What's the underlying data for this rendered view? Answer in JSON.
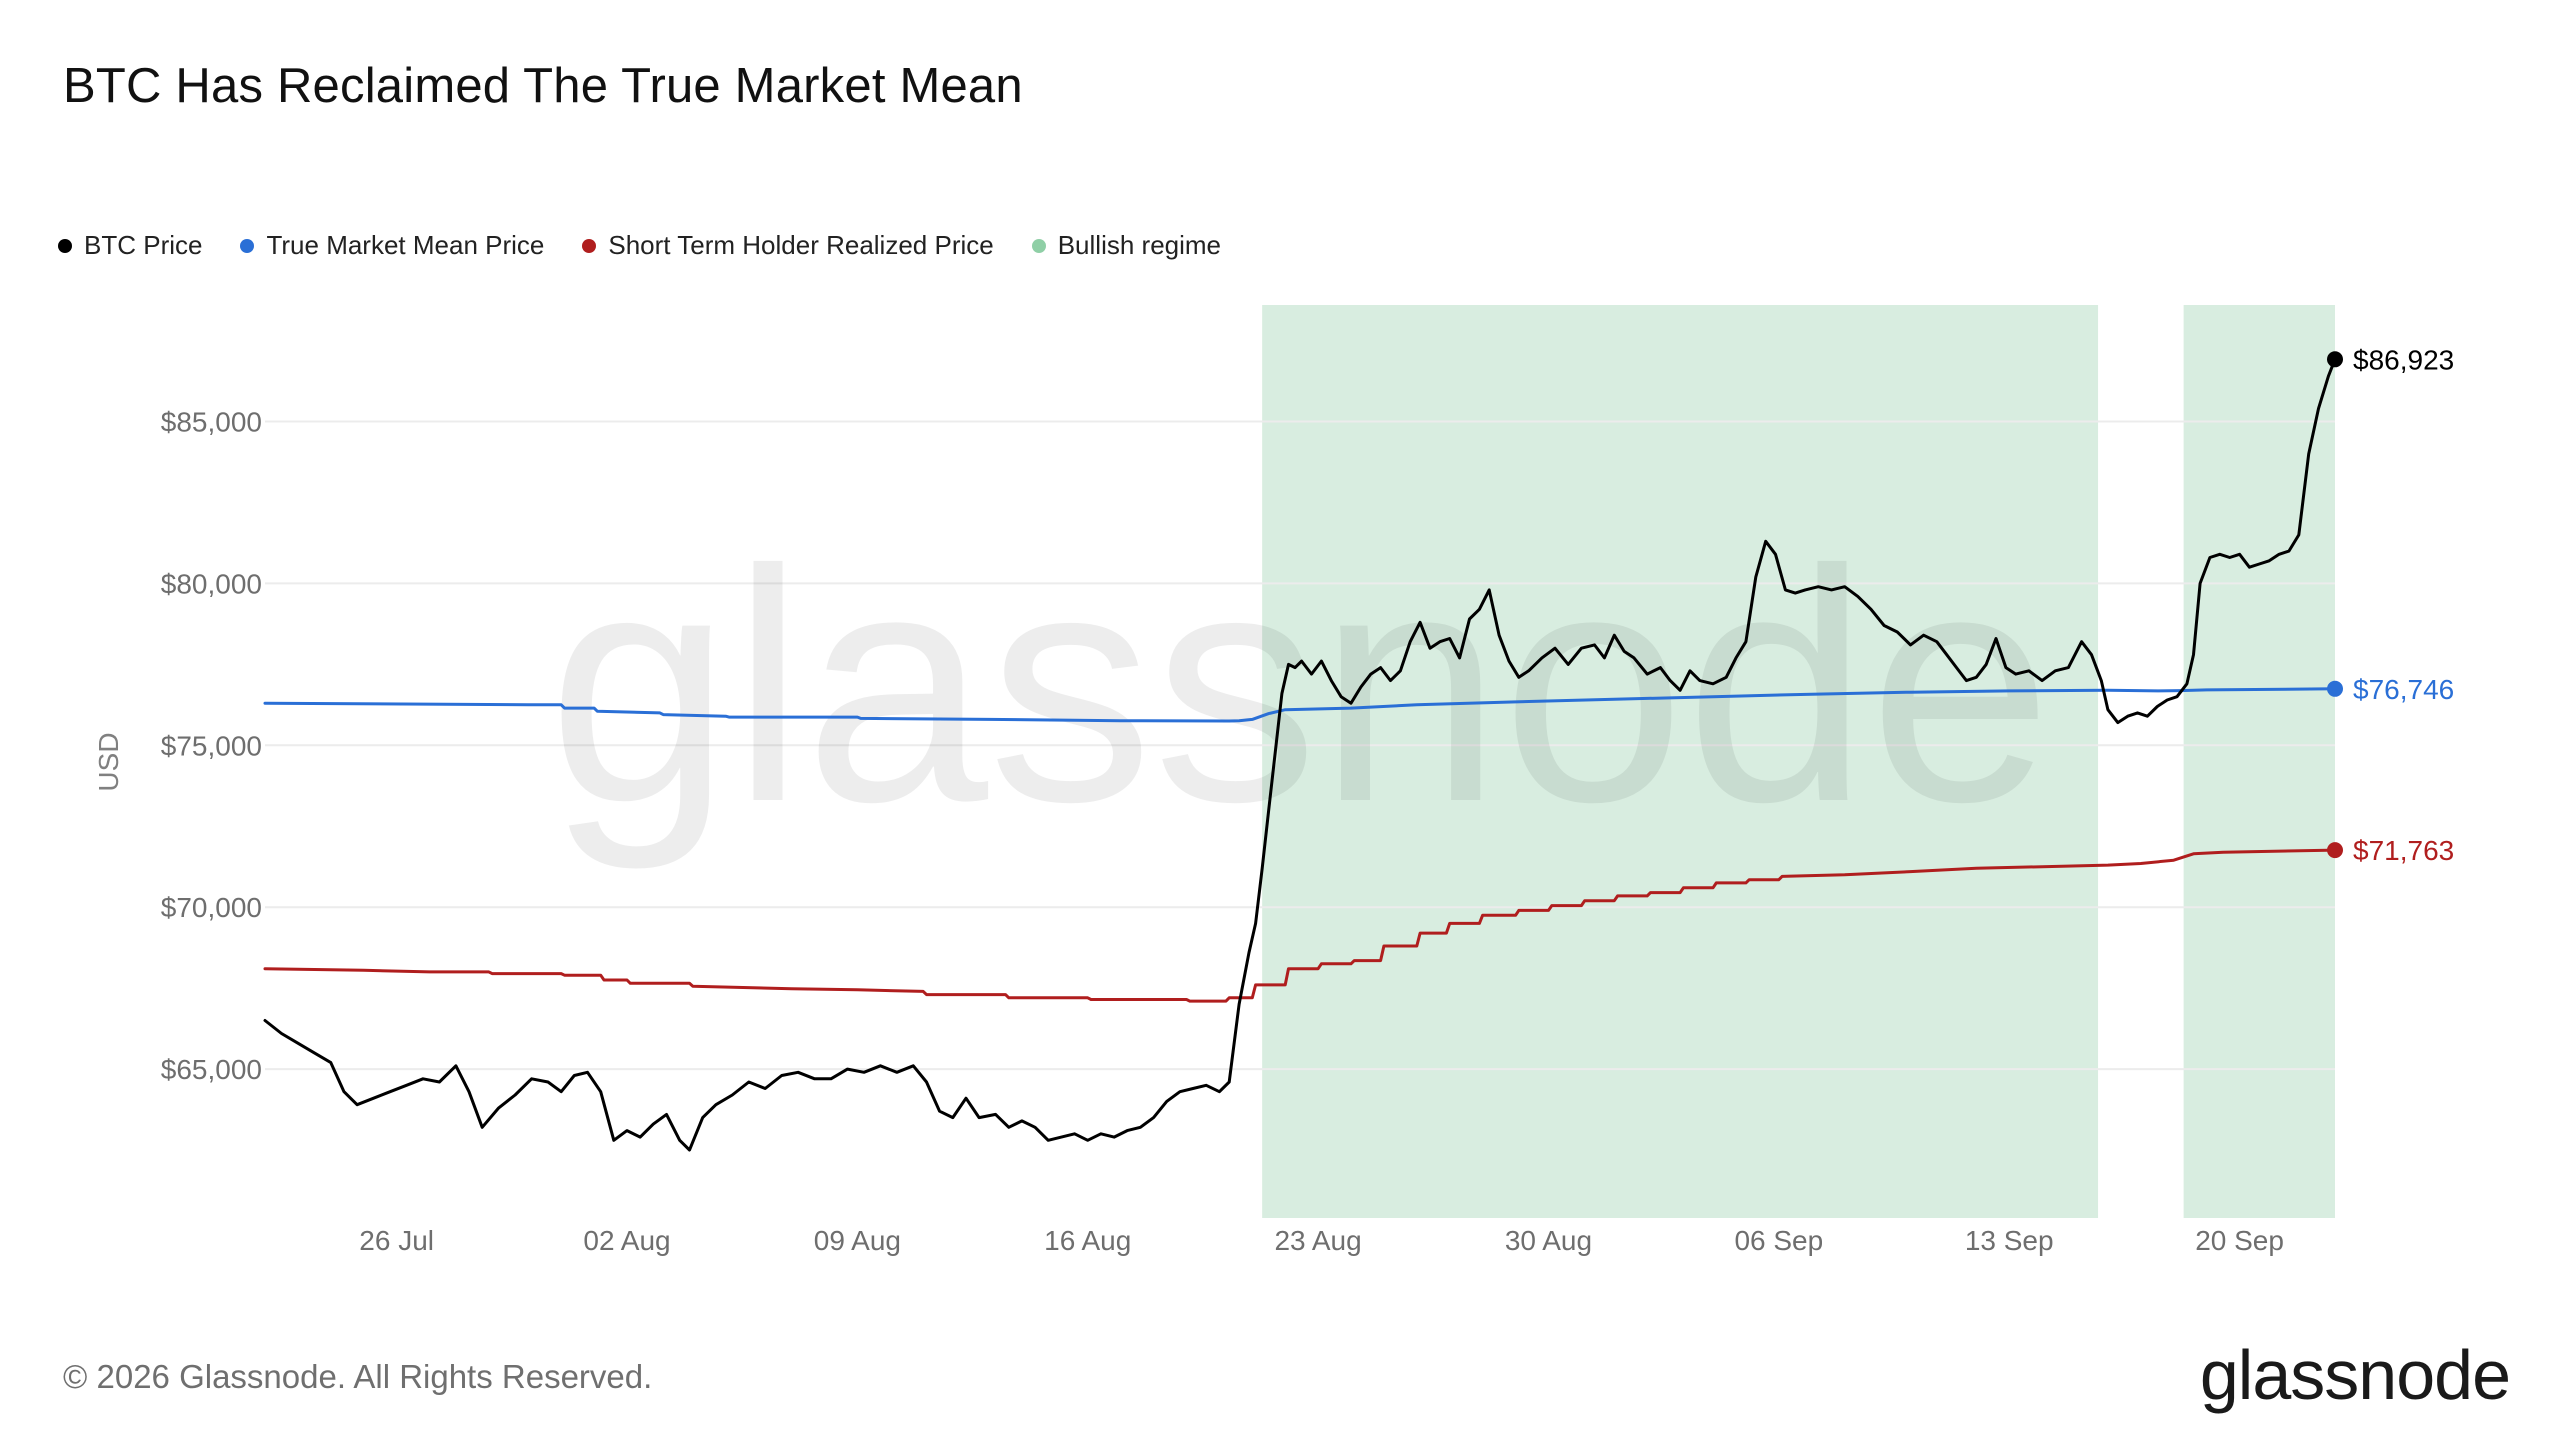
{
  "title": "BTC Has Reclaimed The True Market Mean",
  "legend": [
    {
      "label": "BTC Price",
      "color": "#000000"
    },
    {
      "label": "True Market Mean Price",
      "color": "#2a6fd6"
    },
    {
      "label": "Short Term Holder Realized Price",
      "color": "#b01e1e"
    },
    {
      "label": "Bullish regime",
      "color": "#8fcfa6"
    }
  ],
  "watermark": "glassnode",
  "footer": {
    "copyright": "© 2026 Glassnode. All Rights Reserved.",
    "logo": "glassnode"
  },
  "chart_data": {
    "type": "line",
    "ylabel": "USD",
    "ylim": [
      60400,
      88600
    ],
    "y_ticks": [
      {
        "value": 65000,
        "label": "$65,000"
      },
      {
        "value": 70000,
        "label": "$70,000"
      },
      {
        "value": 75000,
        "label": "$75,000"
      },
      {
        "value": 80000,
        "label": "$80,000"
      },
      {
        "value": 85000,
        "label": "$85,000"
      }
    ],
    "x_ticks": [
      {
        "day": 26,
        "label": "26 Jul"
      },
      {
        "day": 33,
        "label": "02 Aug"
      },
      {
        "day": 40,
        "label": "09 Aug"
      },
      {
        "day": 47,
        "label": "16 Aug"
      },
      {
        "day": 54,
        "label": "23 Aug"
      },
      {
        "day": 61,
        "label": "30 Aug"
      },
      {
        "day": 68,
        "label": "06 Sep"
      },
      {
        "day": 75,
        "label": "13 Sep"
      },
      {
        "day": 82,
        "label": "20 Sep"
      }
    ],
    "xlim": [
      22,
      84.9
    ],
    "bullish_regimes": [
      [
        52.3,
        77.7
      ],
      [
        80.3,
        84.9
      ]
    ],
    "series": [
      {
        "name": "BTC Price",
        "color": "#000000",
        "end_label": "$86,923",
        "points": [
          [
            22,
            66500
          ],
          [
            22.5,
            66100
          ],
          [
            23,
            65800
          ],
          [
            23.5,
            65500
          ],
          [
            24,
            65200
          ],
          [
            24.4,
            64300
          ],
          [
            24.8,
            63900
          ],
          [
            25.3,
            64100
          ],
          [
            25.8,
            64300
          ],
          [
            26.3,
            64500
          ],
          [
            26.8,
            64700
          ],
          [
            27.3,
            64600
          ],
          [
            27.8,
            65100
          ],
          [
            28.2,
            64300
          ],
          [
            28.6,
            63200
          ],
          [
            29.1,
            63800
          ],
          [
            29.6,
            64200
          ],
          [
            30.1,
            64700
          ],
          [
            30.6,
            64600
          ],
          [
            31,
            64300
          ],
          [
            31.4,
            64800
          ],
          [
            31.8,
            64900
          ],
          [
            32.2,
            64300
          ],
          [
            32.6,
            62800
          ],
          [
            33,
            63100
          ],
          [
            33.4,
            62900
          ],
          [
            33.8,
            63300
          ],
          [
            34.2,
            63600
          ],
          [
            34.6,
            62800
          ],
          [
            34.9,
            62500
          ],
          [
            35.3,
            63500
          ],
          [
            35.7,
            63900
          ],
          [
            36.2,
            64200
          ],
          [
            36.7,
            64600
          ],
          [
            37.2,
            64400
          ],
          [
            37.7,
            64800
          ],
          [
            38.2,
            64900
          ],
          [
            38.7,
            64700
          ],
          [
            39.2,
            64700
          ],
          [
            39.7,
            65000
          ],
          [
            40.2,
            64900
          ],
          [
            40.7,
            65100
          ],
          [
            41.2,
            64900
          ],
          [
            41.7,
            65100
          ],
          [
            42.1,
            64600
          ],
          [
            42.5,
            63700
          ],
          [
            42.9,
            63500
          ],
          [
            43.3,
            64100
          ],
          [
            43.7,
            63500
          ],
          [
            44.2,
            63600
          ],
          [
            44.6,
            63200
          ],
          [
            45,
            63400
          ],
          [
            45.4,
            63200
          ],
          [
            45.8,
            62800
          ],
          [
            46.2,
            62900
          ],
          [
            46.6,
            63000
          ],
          [
            47,
            62800
          ],
          [
            47.4,
            63000
          ],
          [
            47.8,
            62900
          ],
          [
            48.2,
            63100
          ],
          [
            48.6,
            63200
          ],
          [
            49,
            63500
          ],
          [
            49.4,
            64000
          ],
          [
            49.8,
            64300
          ],
          [
            50.2,
            64400
          ],
          [
            50.6,
            64500
          ],
          [
            51,
            64300
          ],
          [
            51.3,
            64600
          ],
          [
            51.6,
            67000
          ],
          [
            51.9,
            68600
          ],
          [
            52.1,
            69500
          ],
          [
            52.3,
            71200
          ],
          [
            52.5,
            73000
          ],
          [
            52.7,
            74800
          ],
          [
            52.9,
            76600
          ],
          [
            53.1,
            77500
          ],
          [
            53.3,
            77400
          ],
          [
            53.5,
            77600
          ],
          [
            53.8,
            77200
          ],
          [
            54.1,
            77600
          ],
          [
            54.4,
            77000
          ],
          [
            54.7,
            76500
          ],
          [
            55,
            76300
          ],
          [
            55.3,
            76800
          ],
          [
            55.6,
            77200
          ],
          [
            55.9,
            77400
          ],
          [
            56.2,
            77000
          ],
          [
            56.5,
            77300
          ],
          [
            56.8,
            78200
          ],
          [
            57.1,
            78800
          ],
          [
            57.4,
            78000
          ],
          [
            57.7,
            78200
          ],
          [
            58,
            78300
          ],
          [
            58.3,
            77700
          ],
          [
            58.6,
            78900
          ],
          [
            58.9,
            79200
          ],
          [
            59.2,
            79800
          ],
          [
            59.5,
            78400
          ],
          [
            59.8,
            77600
          ],
          [
            60.1,
            77100
          ],
          [
            60.4,
            77300
          ],
          [
            60.8,
            77700
          ],
          [
            61.2,
            78000
          ],
          [
            61.6,
            77500
          ],
          [
            62,
            78000
          ],
          [
            62.4,
            78100
          ],
          [
            62.7,
            77700
          ],
          [
            63,
            78400
          ],
          [
            63.3,
            77900
          ],
          [
            63.6,
            77700
          ],
          [
            64,
            77200
          ],
          [
            64.4,
            77400
          ],
          [
            64.7,
            77000
          ],
          [
            65,
            76700
          ],
          [
            65.3,
            77300
          ],
          [
            65.6,
            77000
          ],
          [
            66,
            76900
          ],
          [
            66.4,
            77100
          ],
          [
            66.7,
            77700
          ],
          [
            67,
            78200
          ],
          [
            67.3,
            80200
          ],
          [
            67.6,
            81300
          ],
          [
            67.9,
            80900
          ],
          [
            68.2,
            79800
          ],
          [
            68.5,
            79700
          ],
          [
            68.8,
            79800
          ],
          [
            69.2,
            79900
          ],
          [
            69.6,
            79800
          ],
          [
            70,
            79900
          ],
          [
            70.4,
            79600
          ],
          [
            70.8,
            79200
          ],
          [
            71.2,
            78700
          ],
          [
            71.6,
            78500
          ],
          [
            72,
            78100
          ],
          [
            72.4,
            78400
          ],
          [
            72.8,
            78200
          ],
          [
            73.1,
            77800
          ],
          [
            73.4,
            77400
          ],
          [
            73.7,
            77000
          ],
          [
            74,
            77100
          ],
          [
            74.3,
            77500
          ],
          [
            74.6,
            78300
          ],
          [
            74.9,
            77400
          ],
          [
            75.2,
            77200
          ],
          [
            75.6,
            77300
          ],
          [
            76,
            77000
          ],
          [
            76.4,
            77300
          ],
          [
            76.8,
            77400
          ],
          [
            77.2,
            78200
          ],
          [
            77.5,
            77800
          ],
          [
            77.8,
            77000
          ],
          [
            78,
            76100
          ],
          [
            78.3,
            75700
          ],
          [
            78.6,
            75900
          ],
          [
            78.9,
            76000
          ],
          [
            79.2,
            75900
          ],
          [
            79.5,
            76200
          ],
          [
            79.8,
            76400
          ],
          [
            80.1,
            76500
          ],
          [
            80.4,
            76900
          ],
          [
            80.6,
            77800
          ],
          [
            80.8,
            80000
          ],
          [
            81.1,
            80800
          ],
          [
            81.4,
            80900
          ],
          [
            81.7,
            80800
          ],
          [
            82,
            80900
          ],
          [
            82.3,
            80500
          ],
          [
            82.6,
            80600
          ],
          [
            82.9,
            80700
          ],
          [
            83.2,
            80900
          ],
          [
            83.5,
            81000
          ],
          [
            83.8,
            81500
          ],
          [
            84.1,
            84000
          ],
          [
            84.4,
            85400
          ],
          [
            84.7,
            86400
          ],
          [
            84.9,
            86923
          ]
        ]
      },
      {
        "name": "True Market Mean Price",
        "color": "#2a6fd6",
        "end_label": "$76,746",
        "points": [
          [
            22,
            76300
          ],
          [
            30,
            76250
          ],
          [
            31,
            76250
          ],
          [
            31.1,
            76150
          ],
          [
            32,
            76150
          ],
          [
            32.1,
            76050
          ],
          [
            34,
            76000
          ],
          [
            34.1,
            75950
          ],
          [
            36,
            75900
          ],
          [
            36.1,
            75870
          ],
          [
            40,
            75870
          ],
          [
            40.1,
            75830
          ],
          [
            44,
            75800
          ],
          [
            48,
            75760
          ],
          [
            51.3,
            75750
          ],
          [
            51.6,
            75760
          ],
          [
            52,
            75800
          ],
          [
            52.5,
            75980
          ],
          [
            53,
            76100
          ],
          [
            55,
            76150
          ],
          [
            57,
            76250
          ],
          [
            60,
            76340
          ],
          [
            63,
            76420
          ],
          [
            66,
            76500
          ],
          [
            69,
            76580
          ],
          [
            72,
            76640
          ],
          [
            75,
            76680
          ],
          [
            78,
            76700
          ],
          [
            79.5,
            76680
          ],
          [
            80.2,
            76690
          ],
          [
            81,
            76710
          ],
          [
            84.9,
            76746
          ]
        ]
      },
      {
        "name": "Short Term Holder Realized Price",
        "color": "#b01e1e",
        "end_label": "$71,763",
        "points": [
          [
            22,
            68100
          ],
          [
            25,
            68050
          ],
          [
            27,
            68000
          ],
          [
            28.8,
            68000
          ],
          [
            28.9,
            67950
          ],
          [
            31,
            67950
          ],
          [
            31.1,
            67900
          ],
          [
            32.2,
            67900
          ],
          [
            32.3,
            67750
          ],
          [
            33,
            67750
          ],
          [
            33.1,
            67650
          ],
          [
            34.9,
            67650
          ],
          [
            35,
            67560
          ],
          [
            38,
            67480
          ],
          [
            40,
            67450
          ],
          [
            42,
            67400
          ],
          [
            42.1,
            67300
          ],
          [
            44.5,
            67300
          ],
          [
            44.6,
            67200
          ],
          [
            47,
            67200
          ],
          [
            47.1,
            67150
          ],
          [
            50,
            67150
          ],
          [
            50.1,
            67100
          ],
          [
            51.2,
            67100
          ],
          [
            51.3,
            67200
          ],
          [
            52,
            67200
          ],
          [
            52.1,
            67600
          ],
          [
            53,
            67600
          ],
          [
            53.1,
            68100
          ],
          [
            54,
            68100
          ],
          [
            54.1,
            68250
          ],
          [
            55,
            68250
          ],
          [
            55.1,
            68350
          ],
          [
            55.9,
            68350
          ],
          [
            56,
            68800
          ],
          [
            57,
            68800
          ],
          [
            57.1,
            69200
          ],
          [
            57.9,
            69200
          ],
          [
            58,
            69500
          ],
          [
            58.9,
            69500
          ],
          [
            59,
            69750
          ],
          [
            60,
            69750
          ],
          [
            60.1,
            69900
          ],
          [
            61,
            69900
          ],
          [
            61.1,
            70050
          ],
          [
            62,
            70050
          ],
          [
            62.1,
            70200
          ],
          [
            63,
            70200
          ],
          [
            63.1,
            70350
          ],
          [
            64,
            70350
          ],
          [
            64.1,
            70450
          ],
          [
            65,
            70450
          ],
          [
            65.1,
            70600
          ],
          [
            66,
            70600
          ],
          [
            66.1,
            70750
          ],
          [
            67,
            70750
          ],
          [
            67.1,
            70850
          ],
          [
            68,
            70850
          ],
          [
            68.1,
            70950
          ],
          [
            70,
            71000
          ],
          [
            72,
            71100
          ],
          [
            74,
            71200
          ],
          [
            76,
            71250
          ],
          [
            78,
            71300
          ],
          [
            79,
            71350
          ],
          [
            80,
            71450
          ],
          [
            80.6,
            71650
          ],
          [
            81.5,
            71700
          ],
          [
            84.9,
            71763
          ]
        ]
      }
    ]
  }
}
